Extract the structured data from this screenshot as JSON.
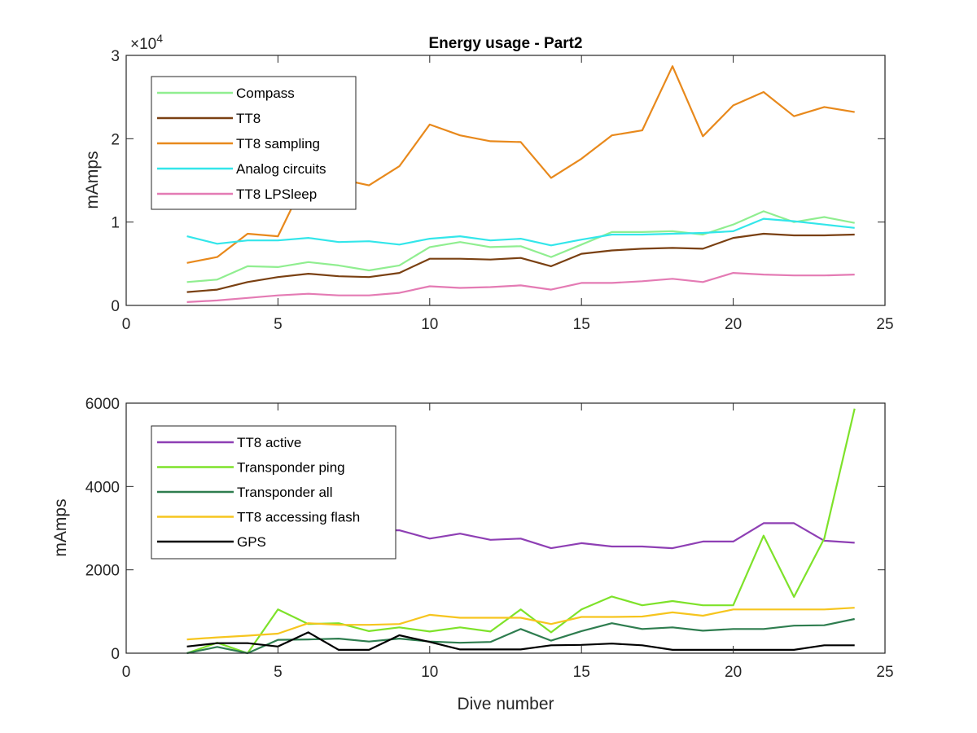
{
  "chart_data": [
    {
      "type": "line",
      "title": "Energy usage - Part2",
      "xlabel": "",
      "ylabel": "mAmps",
      "xlim": [
        0,
        25
      ],
      "ylim": [
        0,
        30000
      ],
      "xticks": [
        "0",
        "5",
        "10",
        "15",
        "20",
        "25"
      ],
      "yticks": [
        "0",
        "1",
        "2",
        "3"
      ],
      "exponent_label": "×10",
      "exponent_power": "4",
      "legend_position": "top-left",
      "grid": false,
      "x": [
        2,
        3,
        4,
        5,
        6,
        7,
        8,
        9,
        10,
        11,
        12,
        13,
        14,
        15,
        16,
        17,
        18,
        19,
        20,
        21,
        22,
        23,
        24
      ],
      "series": [
        {
          "name": "Compass",
          "color": "#90ee90",
          "values": [
            2800,
            3100,
            4700,
            4600,
            5200,
            4800,
            4200,
            4800,
            7000,
            7600,
            7000,
            7100,
            5800,
            7300,
            8800,
            8800,
            8900,
            8500,
            9700,
            11300,
            10000,
            10600,
            9900
          ]
        },
        {
          "name": "TT8",
          "color": "#7a4012",
          "values": [
            1600,
            1900,
            2800,
            3400,
            3800,
            3500,
            3400,
            3900,
            5600,
            5600,
            5500,
            5700,
            4700,
            6200,
            6600,
            6800,
            6900,
            6800,
            8100,
            8600,
            8400,
            8400,
            8500
          ]
        },
        {
          "name": "TT8 sampling",
          "color": "#e8891c",
          "values": [
            5100,
            5800,
            8600,
            8300,
            15800,
            15200,
            14400,
            16700,
            21700,
            20400,
            19700,
            19600,
            15300,
            17600,
            20400,
            21000,
            28700,
            20300,
            24000,
            25600,
            22700,
            23800,
            23200
          ]
        },
        {
          "name": "Analog circuits",
          "color": "#33e6ea",
          "values": [
            8300,
            7400,
            7800,
            7800,
            8100,
            7600,
            7700,
            7300,
            8000,
            8300,
            7800,
            8000,
            7200,
            7900,
            8500,
            8500,
            8600,
            8700,
            8900,
            10400,
            10100,
            9700,
            9300
          ]
        },
        {
          "name": "TT8 LPSleep",
          "color": "#e47bb4",
          "values": [
            400,
            600,
            900,
            1200,
            1400,
            1200,
            1200,
            1500,
            2300,
            2100,
            2200,
            2400,
            1900,
            2700,
            2700,
            2900,
            3200,
            2800,
            3900,
            3700,
            3600,
            3600,
            3700
          ]
        }
      ]
    },
    {
      "type": "line",
      "title": "",
      "xlabel": "Dive number",
      "ylabel": "mAmps",
      "xlim": [
        0,
        25
      ],
      "ylim": [
        0,
        6000
      ],
      "xticks": [
        "0",
        "5",
        "10",
        "15",
        "20",
        "25"
      ],
      "yticks": [
        "0",
        "2000",
        "4000",
        "6000"
      ],
      "legend_position": "top-left",
      "grid": false,
      "x": [
        2,
        3,
        4,
        5,
        6,
        7,
        8,
        9,
        10,
        11,
        12,
        13,
        14,
        15,
        16,
        17,
        18,
        19,
        20,
        21,
        22,
        23,
        24
      ],
      "series": [
        {
          "name": "TT8 active",
          "color": "#8e3fb4",
          "values": [
            2800,
            2850,
            2900,
            2950,
            3000,
            2950,
            2950,
            2950,
            2750,
            2870,
            2720,
            2750,
            2520,
            2640,
            2560,
            2560,
            2520,
            2680,
            2680,
            3120,
            3120,
            2700,
            2650
          ]
        },
        {
          "name": "Transponder ping",
          "color": "#7ee22a",
          "values": [
            0,
            250,
            0,
            1050,
            700,
            720,
            530,
            620,
            520,
            620,
            520,
            1050,
            500,
            1050,
            1360,
            1150,
            1250,
            1150,
            1150,
            2820,
            1350,
            2750,
            5870
          ]
        },
        {
          "name": "Transponder all",
          "color": "#2e7d4f",
          "values": [
            0,
            150,
            0,
            320,
            330,
            350,
            280,
            350,
            280,
            250,
            270,
            580,
            300,
            530,
            720,
            580,
            620,
            540,
            580,
            580,
            660,
            670,
            820
          ]
        },
        {
          "name": "TT8 accessing flash",
          "color": "#f6c51e",
          "values": [
            330,
            380,
            420,
            470,
            720,
            680,
            680,
            700,
            920,
            850,
            850,
            850,
            700,
            870,
            870,
            880,
            980,
            900,
            1050,
            1050,
            1050,
            1050,
            1090
          ]
        },
        {
          "name": "GPS",
          "color": "#000000",
          "values": [
            160,
            240,
            240,
            160,
            500,
            80,
            80,
            430,
            270,
            90,
            90,
            90,
            190,
            200,
            230,
            190,
            80,
            80,
            80,
            80,
            80,
            190,
            190
          ]
        }
      ]
    }
  ]
}
